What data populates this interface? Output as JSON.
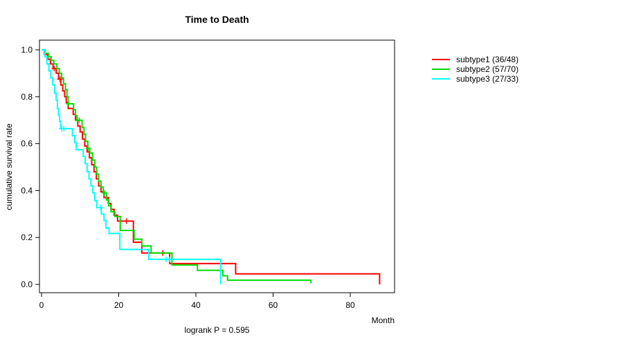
{
  "chart_data": {
    "type": "line",
    "variant": "kaplan_meier_step_survival",
    "title": "Time to Death",
    "xlabel": "Month",
    "ylabel": "cumulative survival rate",
    "annotation": "logrank P = 0.595",
    "xlim": [
      0,
      92
    ],
    "ylim": [
      0.0,
      1.0
    ],
    "xticks": [
      0,
      20,
      40,
      60,
      80
    ],
    "ytick_values": [
      0.0,
      0.2,
      0.4,
      0.6,
      0.8,
      1.0
    ],
    "ytick_labels": [
      "0.0",
      "0.2",
      "0.4",
      "0.6",
      "0.8",
      "1.0"
    ],
    "grid": false,
    "legend_position": "right-outside",
    "series": [
      {
        "name": "subtype1 (36/48)",
        "deaths": 36,
        "n": 48,
        "color": "#ff0000",
        "points": [
          [
            0,
            1.0
          ],
          [
            0.8,
            0.98
          ],
          [
            1.6,
            0.96
          ],
          [
            2.3,
            0.94
          ],
          [
            3,
            0.92
          ],
          [
            3.8,
            0.9
          ],
          [
            4.4,
            0.875
          ],
          [
            5,
            0.85
          ],
          [
            5.5,
            0.825
          ],
          [
            6,
            0.8
          ],
          [
            6.4,
            0.775
          ],
          [
            6.9,
            0.75
          ],
          [
            8.2,
            0.725
          ],
          [
            8.8,
            0.7
          ],
          [
            9.4,
            0.675
          ],
          [
            10,
            0.65
          ],
          [
            10.6,
            0.62
          ],
          [
            11.2,
            0.59
          ],
          [
            11.8,
            0.565
          ],
          [
            12.4,
            0.54
          ],
          [
            13,
            0.51
          ],
          [
            13.6,
            0.48
          ],
          [
            14.2,
            0.45
          ],
          [
            14.8,
            0.42
          ],
          [
            15.4,
            0.395
          ],
          [
            16.2,
            0.37
          ],
          [
            17.3,
            0.345
          ],
          [
            18,
            0.32
          ],
          [
            18.8,
            0.295
          ],
          [
            19.7,
            0.27
          ],
          [
            23.8,
            0.18
          ],
          [
            26,
            0.134
          ],
          [
            33.2,
            0.089
          ],
          [
            50.3,
            0.045
          ],
          [
            87.6,
            0.0
          ]
        ],
        "censor_marks": [
          3.3,
          4.8,
          16.9,
          22.0,
          31.4
        ]
      },
      {
        "name": "subtype2 (57/70)",
        "deaths": 57,
        "n": 70,
        "color": "#00dd00",
        "points": [
          [
            0,
            1.0
          ],
          [
            1,
            0.985
          ],
          [
            1.8,
            0.97
          ],
          [
            2.5,
            0.955
          ],
          [
            3.2,
            0.94
          ],
          [
            4,
            0.92
          ],
          [
            4.6,
            0.9
          ],
          [
            5.2,
            0.88
          ],
          [
            5.7,
            0.855
          ],
          [
            6.2,
            0.83
          ],
          [
            6.6,
            0.8
          ],
          [
            6.9,
            0.77
          ],
          [
            8.3,
            0.745
          ],
          [
            8.8,
            0.72
          ],
          [
            9.2,
            0.7
          ],
          [
            10.5,
            0.67
          ],
          [
            11,
            0.64
          ],
          [
            11.4,
            0.61
          ],
          [
            12,
            0.58
          ],
          [
            12.5,
            0.56
          ],
          [
            13.2,
            0.53
          ],
          [
            13.8,
            0.5
          ],
          [
            14.3,
            0.47
          ],
          [
            14.8,
            0.44
          ],
          [
            15.4,
            0.415
          ],
          [
            16,
            0.39
          ],
          [
            16.8,
            0.36
          ],
          [
            17.4,
            0.335
          ],
          [
            18,
            0.31
          ],
          [
            19,
            0.29
          ],
          [
            20.4,
            0.23
          ],
          [
            24,
            0.193
          ],
          [
            26,
            0.164
          ],
          [
            28.4,
            0.134
          ],
          [
            33.8,
            0.083
          ],
          [
            40.4,
            0.06
          ],
          [
            47,
            0.037
          ],
          [
            48.2,
            0.018
          ],
          [
            69.8,
            0.005
          ]
        ],
        "censor_marks": [
          7.0,
          9.3,
          9.8,
          12.1,
          16.3
        ]
      },
      {
        "name": "subtype3 (27/33)",
        "deaths": 27,
        "n": 33,
        "color": "#00ffff",
        "points": [
          [
            0,
            1.0
          ],
          [
            0.9,
            0.97
          ],
          [
            1.4,
            0.94
          ],
          [
            1.9,
            0.91
          ],
          [
            2.4,
            0.88
          ],
          [
            2.9,
            0.85
          ],
          [
            3.4,
            0.815
          ],
          [
            3.8,
            0.785
          ],
          [
            4.1,
            0.75
          ],
          [
            4.4,
            0.72
          ],
          [
            4.7,
            0.695
          ],
          [
            5,
            0.664
          ],
          [
            8,
            0.634
          ],
          [
            8.6,
            0.604
          ],
          [
            9,
            0.574
          ],
          [
            10.8,
            0.545
          ],
          [
            11.3,
            0.515
          ],
          [
            11.8,
            0.48
          ],
          [
            12.3,
            0.45
          ],
          [
            12.8,
            0.42
          ],
          [
            13.3,
            0.39
          ],
          [
            13.8,
            0.357
          ],
          [
            14.3,
            0.327
          ],
          [
            15.5,
            0.3
          ],
          [
            16.2,
            0.272
          ],
          [
            16.7,
            0.24
          ],
          [
            17.5,
            0.217
          ],
          [
            20.3,
            0.149
          ],
          [
            27.8,
            0.107
          ],
          [
            46.4,
            0.0
          ]
        ],
        "censor_marks": [
          5.2,
          5.8,
          15.3,
          32.3,
          33.2
        ]
      }
    ]
  }
}
